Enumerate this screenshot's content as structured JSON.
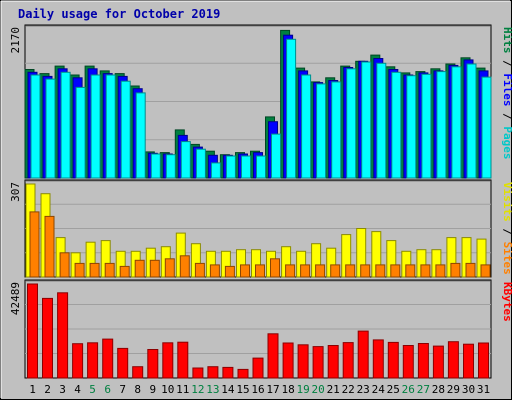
{
  "chart_data": [
    {
      "type": "bar",
      "panel": "pages-files-hits",
      "title": "Daily usage for October 2019",
      "categories": [
        "1",
        "2",
        "3",
        "4",
        "5",
        "6",
        "7",
        "8",
        "9",
        "10",
        "11",
        "12",
        "13",
        "14",
        "15",
        "16",
        "17",
        "18",
        "19",
        "20",
        "21",
        "22",
        "23",
        "24",
        "25",
        "26",
        "27",
        "28",
        "29",
        "30",
        "31"
      ],
      "weekend_days": [
        "5",
        "6",
        "12",
        "13",
        "19",
        "20",
        "26",
        "27"
      ],
      "ymax_label": "2170",
      "ylim": [
        0,
        2170
      ],
      "legend": [
        "Pages",
        "Files",
        "Hits"
      ],
      "legend_placement": "right",
      "series": [
        {
          "name": "Hits",
          "color": "#008040",
          "values": [
            1580,
            1520,
            1630,
            1500,
            1630,
            1560,
            1520,
            1340,
            380,
            370,
            700,
            490,
            390,
            340,
            370,
            390,
            890,
            2150,
            1600,
            1400,
            1460,
            1630,
            1700,
            1790,
            1620,
            1530,
            1550,
            1590,
            1660,
            1750,
            1600
          ]
        },
        {
          "name": "Files",
          "color": "#0000ff",
          "values": [
            1540,
            1480,
            1590,
            1460,
            1590,
            1520,
            1480,
            1300,
            360,
            350,
            620,
            450,
            330,
            330,
            350,
            370,
            820,
            2080,
            1560,
            1390,
            1420,
            1610,
            1700,
            1740,
            1580,
            1500,
            1530,
            1560,
            1640,
            1720,
            1560
          ]
        },
        {
          "name": "Pages",
          "color": "#00ffff",
          "values": [
            1500,
            1440,
            1540,
            1320,
            1500,
            1500,
            1410,
            1240,
            350,
            340,
            530,
            420,
            220,
            320,
            320,
            320,
            640,
            2020,
            1500,
            1370,
            1400,
            1590,
            1690,
            1670,
            1540,
            1490,
            1510,
            1550,
            1620,
            1660,
            1470
          ]
        }
      ]
    },
    {
      "type": "bar",
      "panel": "sites-visits",
      "categories": [
        "1",
        "2",
        "3",
        "4",
        "5",
        "6",
        "7",
        "8",
        "9",
        "10",
        "11",
        "12",
        "13",
        "14",
        "15",
        "16",
        "17",
        "18",
        "19",
        "20",
        "21",
        "22",
        "23",
        "24",
        "25",
        "26",
        "27",
        "28",
        "29",
        "30",
        "31"
      ],
      "ymax_label": "307",
      "ylim": [
        0,
        307
      ],
      "legend": [
        "Sites",
        "Visits"
      ],
      "legend_placement": "right",
      "series": [
        {
          "name": "Visits",
          "color": "#ffff00",
          "values": [
            307,
            275,
            130,
            80,
            115,
            120,
            85,
            85,
            95,
            100,
            145,
            110,
            85,
            85,
            90,
            90,
            85,
            100,
            85,
            110,
            95,
            140,
            160,
            150,
            120,
            85,
            90,
            90,
            130,
            130,
            125
          ]
        },
        {
          "name": "Sites",
          "color": "#ff8000",
          "values": [
            215,
            200,
            80,
            45,
            45,
            45,
            35,
            55,
            55,
            60,
            70,
            45,
            40,
            35,
            40,
            40,
            60,
            40,
            40,
            40,
            40,
            40,
            40,
            40,
            40,
            40,
            40,
            40,
            45,
            45,
            40
          ]
        }
      ]
    },
    {
      "type": "bar",
      "panel": "kbytes",
      "categories": [
        "1",
        "2",
        "3",
        "4",
        "5",
        "6",
        "7",
        "8",
        "9",
        "10",
        "11",
        "12",
        "13",
        "14",
        "15",
        "16",
        "17",
        "18",
        "19",
        "20",
        "21",
        "22",
        "23",
        "24",
        "25",
        "26",
        "27",
        "28",
        "29",
        "30",
        "31"
      ],
      "ymax_label": "42489",
      "ylim": [
        0,
        42489
      ],
      "legend": [
        "KBytes"
      ],
      "legend_placement": "right",
      "series": [
        {
          "name": "KBytes",
          "color": "#ff0000",
          "values": [
            42489,
            36000,
            38500,
            15500,
            15900,
            17600,
            13400,
            5100,
            12900,
            15900,
            16200,
            4500,
            5100,
            4800,
            3900,
            9000,
            20000,
            15800,
            15000,
            14200,
            14700,
            16000,
            21200,
            17200,
            16100,
            14700,
            15600,
            14400,
            16400,
            15300,
            15800
          ]
        }
      ]
    }
  ]
}
